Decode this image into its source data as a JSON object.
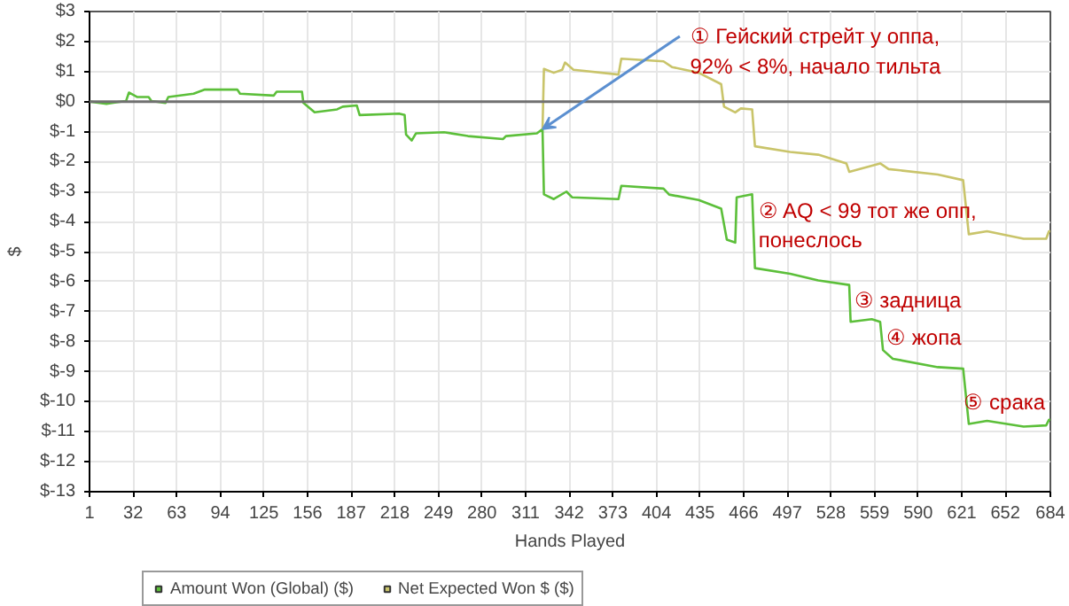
{
  "chart_data": {
    "type": "line",
    "xlabel": "Hands Played",
    "ylabel": "$",
    "xlim": [
      1,
      684
    ],
    "xticks": [
      1,
      32,
      63,
      94,
      125,
      156,
      187,
      218,
      249,
      280,
      311,
      342,
      373,
      404,
      435,
      466,
      497,
      528,
      559,
      590,
      621,
      652,
      684
    ],
    "ylim": [
      -13,
      3
    ],
    "yticks": [
      {
        "value": 3,
        "label": "$3"
      },
      {
        "value": 2,
        "label": "$2"
      },
      {
        "value": 1,
        "label": "$1"
      },
      {
        "value": 0,
        "label": "$0"
      },
      {
        "value": -1,
        "label": "$-1"
      },
      {
        "value": -2,
        "label": "$-2"
      },
      {
        "value": -3,
        "label": "$-3"
      },
      {
        "value": -4,
        "label": "$-4"
      },
      {
        "value": -5,
        "label": "$-5"
      },
      {
        "value": -6,
        "label": "$-6"
      },
      {
        "value": -7,
        "label": "$-7"
      },
      {
        "value": -8,
        "label": "$-8"
      },
      {
        "value": -9,
        "label": "$-9"
      },
      {
        "value": -10,
        "label": "$-10"
      },
      {
        "value": -11,
        "label": "$-11"
      },
      {
        "value": -12,
        "label": "$-12"
      },
      {
        "value": -13,
        "label": "$-13"
      }
    ],
    "grid": true,
    "legend": "bottom left",
    "marker": "none",
    "line_style": "solid",
    "ref_lines": [
      {
        "axis": "y",
        "value": 0,
        "label": null,
        "color": "#707070"
      }
    ],
    "series": [
      {
        "name": "Amount Won (Global) ($)",
        "color": "#5cbf3a",
        "x": [
          1,
          13,
          19,
          27,
          29,
          35,
          43,
          45,
          55,
          57,
          75,
          83,
          106,
          108,
          132,
          134,
          152,
          153,
          161,
          177,
          181,
          191,
          193,
          221,
          225,
          226,
          230,
          233,
          253,
          270,
          295,
          297,
          319,
          323,
          324,
          331,
          340,
          344,
          377,
          379,
          409,
          413,
          434,
          450,
          454,
          460,
          461,
          472,
          474,
          499,
          519,
          541,
          542,
          557,
          563,
          565,
          572,
          604,
          622,
          626,
          639,
          665,
          681,
          683,
          684
        ],
        "values": [
          0,
          -0.08,
          -0.03,
          0.02,
          0.3,
          0.15,
          0.15,
          0.02,
          -0.05,
          0.15,
          0.26,
          0.4,
          0.4,
          0.26,
          0.2,
          0.33,
          0.33,
          -0.04,
          -0.36,
          -0.26,
          -0.17,
          -0.13,
          -0.45,
          -0.4,
          -0.45,
          -1.1,
          -1.3,
          -1.06,
          -1.02,
          -1.15,
          -1.25,
          -1.15,
          -1.06,
          -0.92,
          -3.09,
          -3.25,
          -3.0,
          -3.19,
          -3.25,
          -2.81,
          -2.9,
          -3.1,
          -3.28,
          -3.57,
          -4.6,
          -4.7,
          -3.19,
          -3.09,
          -5.55,
          -5.74,
          -5.96,
          -6.11,
          -7.34,
          -7.25,
          -7.34,
          -8.28,
          -8.57,
          -8.85,
          -8.9,
          -10.74,
          -10.64,
          -10.83,
          -10.79,
          -10.6,
          -10.6
        ]
      },
      {
        "name": "Net Expected Won $ ($)",
        "color": "#c9c46a",
        "x": [
          323,
          324,
          331,
          337,
          339,
          345,
          377,
          379,
          409,
          415,
          434,
          450,
          452,
          460,
          464,
          472,
          474,
          499,
          519,
          539,
          541,
          563,
          569,
          604,
          622,
          626,
          639,
          665,
          681,
          683,
          684
        ],
        "values": [
          -0.92,
          1.09,
          0.96,
          1.06,
          1.3,
          1.06,
          0.9,
          1.43,
          1.34,
          1.15,
          0.96,
          0.58,
          -0.17,
          -0.36,
          -0.23,
          -0.26,
          -1.49,
          -1.68,
          -1.77,
          -2.06,
          -2.34,
          -2.06,
          -2.25,
          -2.43,
          -2.62,
          -4.42,
          -4.32,
          -4.57,
          -4.57,
          -4.32,
          -4.32
        ]
      }
    ],
    "annotations": [
      {
        "text": "① Гейский стрейт у оппа,\n    92% < 8%, начало тильта",
        "x": 323,
        "y": -0.92
      },
      {
        "text": "② AQ < 99 тот же опп,\n    понеслось",
        "x": 474,
        "y": -3.1
      },
      {
        "text": "③ задница",
        "x": 542,
        "y": -6.1
      },
      {
        "text": "④ жопа",
        "x": 565,
        "y": -7.34
      },
      {
        "text": "⑤ срака",
        "x": 620,
        "y": -9.5
      }
    ]
  }
}
